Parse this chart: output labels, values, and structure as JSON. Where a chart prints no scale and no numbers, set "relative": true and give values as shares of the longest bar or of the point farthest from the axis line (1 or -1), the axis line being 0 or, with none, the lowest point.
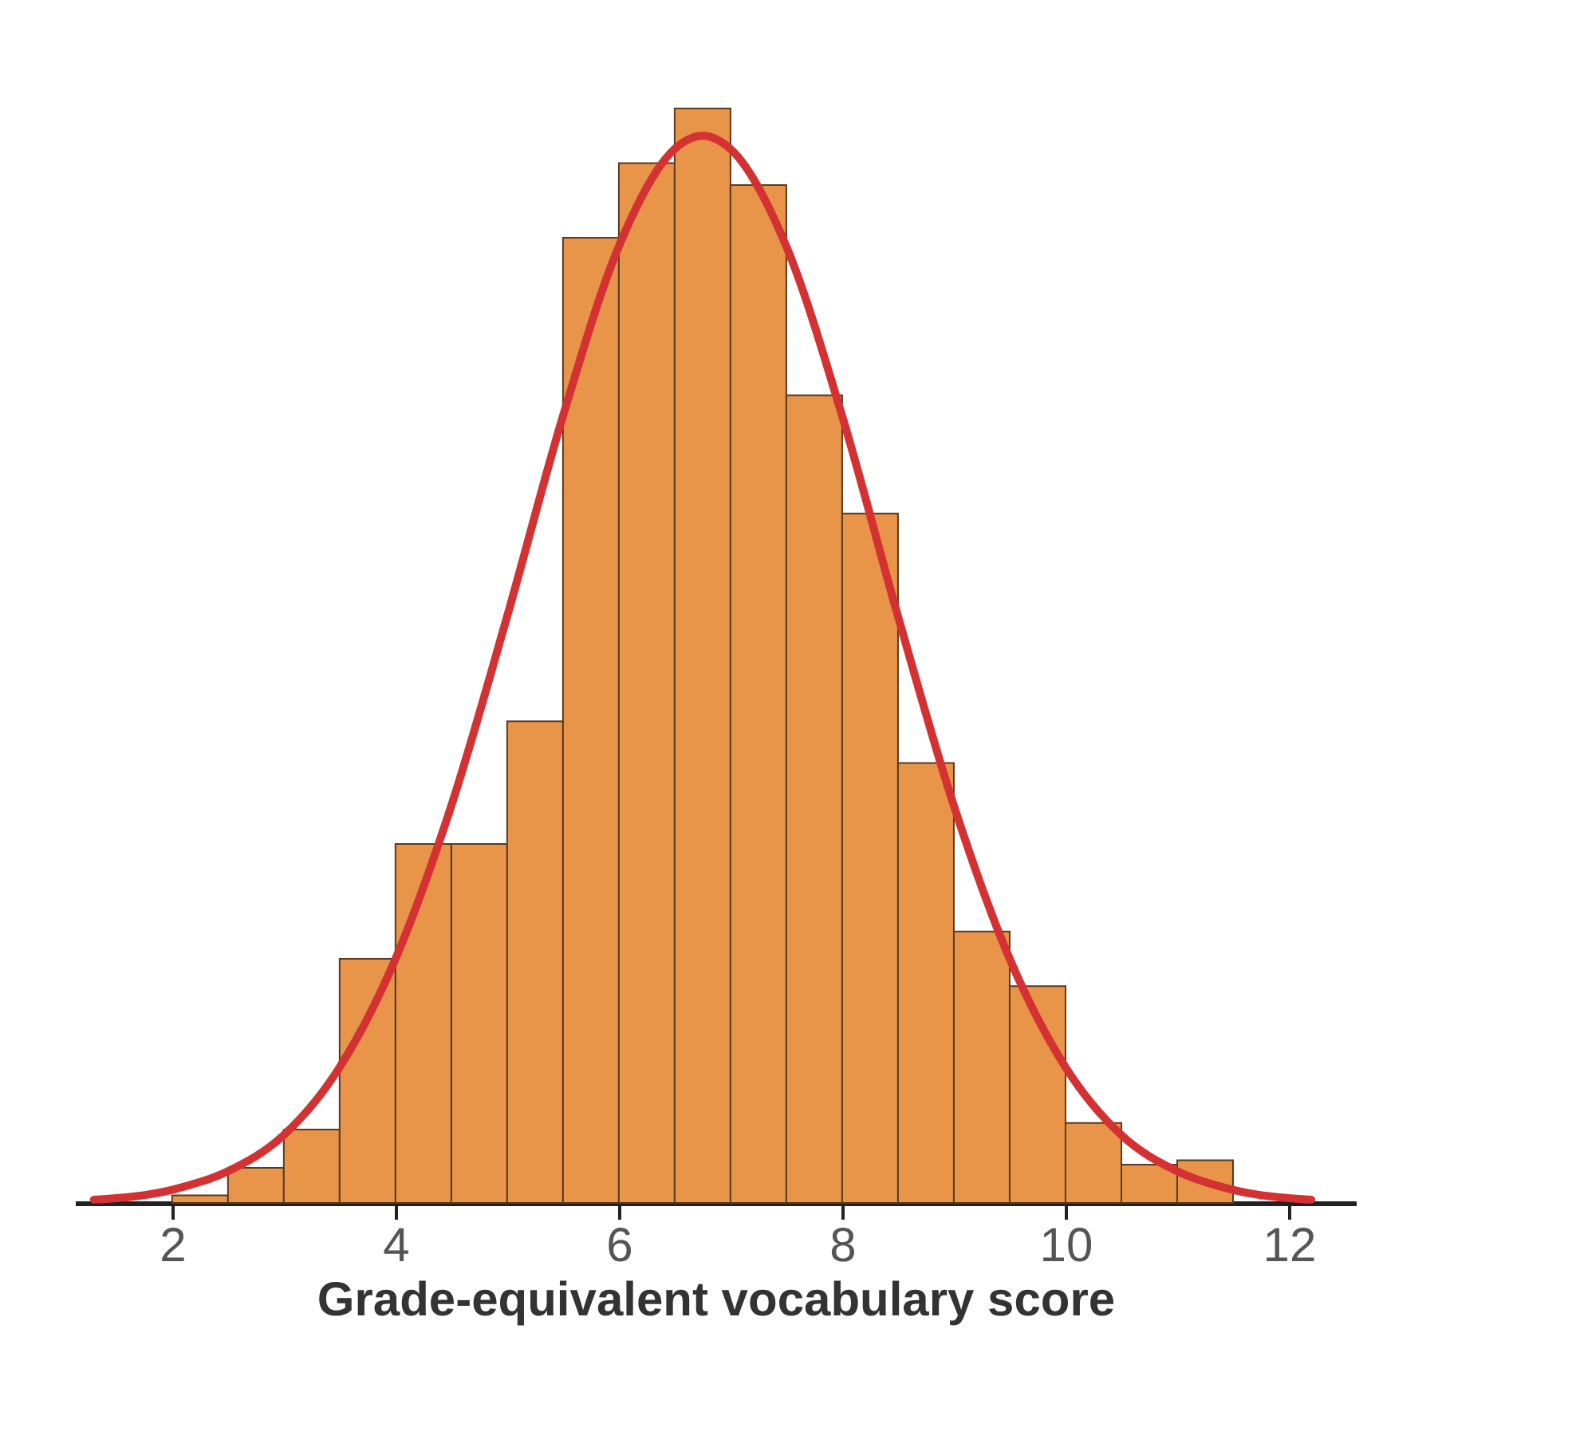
{
  "chart_data": {
    "type": "histogram",
    "relative": true,
    "xlabel": "Grade-equivalent vocabulary score",
    "color": "#e8954a",
    "bins": [
      2,
      2.5,
      3,
      3.5,
      4,
      4.5,
      5,
      5.5,
      6,
      6.5,
      7,
      7.5,
      8,
      8.5,
      9,
      9.5,
      10,
      10.5,
      11,
      11.5
    ],
    "values": [
      0.007,
      0.032,
      0.067,
      0.223,
      0.328,
      0.328,
      0.44,
      0.882,
      0.95,
      1,
      0.93,
      0.738,
      0.63,
      0.402,
      0.248,
      0.198,
      0.073,
      0.035,
      0.039
    ],
    "series": [
      {
        "type": "line",
        "color": "#d43232",
        "x": [
          1.3,
          2,
          2.5,
          3,
          3.5,
          4,
          4.5,
          5,
          5.5,
          6,
          6.5,
          6.75,
          7,
          7.5,
          8,
          8.5,
          9,
          9.5,
          10,
          10.5,
          11,
          11.5,
          12.2
        ],
        "values": [
          0.003,
          0.012,
          0.029,
          0.062,
          0.124,
          0.223,
          0.363,
          0.536,
          0.719,
          0.874,
          0.963,
          0.975,
          0.963,
          0.874,
          0.719,
          0.536,
          0.363,
          0.223,
          0.124,
          0.062,
          0.029,
          0.012,
          0.003
        ]
      }
    ],
    "xlim": [
      1.13,
      12.6
    ],
    "xticks": [
      2,
      4,
      6,
      8,
      10,
      12
    ]
  }
}
